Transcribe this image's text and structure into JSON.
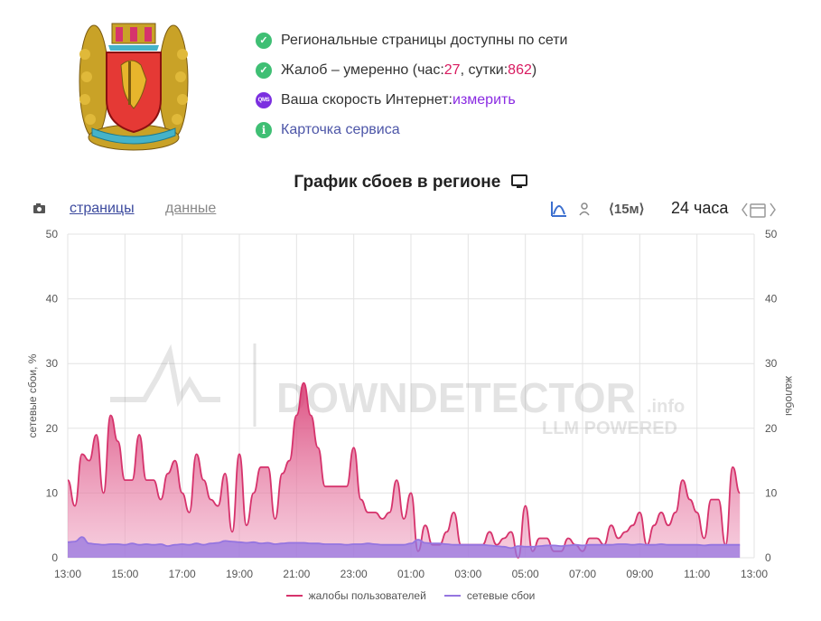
{
  "status": {
    "line1": "Региональные страницы доступны по сети",
    "line2_prefix": "Жалоб – умеренно (час: ",
    "line2_hour": "27",
    "line2_mid": ", сутки: ",
    "line2_day": "862",
    "line2_suffix": ")",
    "line3_label": "Ваша скорость Интернет: ",
    "line3_link": "измерить",
    "qms_badge": "QMS",
    "line4": "Карточка сервиса"
  },
  "chart_title": "График сбоев в регионе",
  "toolbar": {
    "tab_pages": "страницы",
    "tab_data": "данные",
    "interval": "⟨15м⟩",
    "period": "24 часа"
  },
  "watermark": {
    "main": "DOWNDETECTOR",
    "suffix": ".info",
    "sub": "LLM POWERED"
  },
  "colors": {
    "complaints": "#d6336c",
    "outages": "#9575e0",
    "ok": "#3fbf74",
    "accent": "#d81b60"
  },
  "chart_data": {
    "type": "area",
    "ylabel_left": "сетевые сбои, %",
    "ylabel_right": "жалобы",
    "ylim": [
      0,
      50
    ],
    "yticks": [
      0,
      10,
      20,
      30,
      40,
      50
    ],
    "x_ticks": [
      "13:00",
      "15:00",
      "17:00",
      "19:00",
      "21:00",
      "23:00",
      "01:00",
      "03:00",
      "05:00",
      "07:00",
      "09:00",
      "11:00",
      "13:00"
    ],
    "x_start": "13:00",
    "x_step_minutes": 15,
    "legend_position": "bottom",
    "grid": true,
    "series": [
      {
        "name": "жалобы пользователей",
        "values": [
          12,
          8,
          16,
          15,
          19,
          10,
          22,
          18,
          12,
          12,
          19,
          12,
          12,
          9,
          13,
          15,
          10,
          7,
          16,
          12,
          9,
          8,
          13,
          4,
          16,
          5,
          10,
          14,
          14,
          6,
          13,
          15,
          22,
          27,
          22,
          17,
          11,
          11,
          11,
          11,
          17,
          9,
          7,
          7,
          6,
          7,
          12,
          6,
          10,
          1,
          5,
          2,
          2,
          4,
          7,
          2,
          2,
          2,
          2,
          4,
          2,
          3,
          4,
          0,
          8,
          1,
          3,
          3,
          1,
          1,
          3,
          2,
          1,
          3,
          3,
          2,
          5,
          3,
          4,
          5,
          7,
          2,
          5,
          7,
          5,
          7,
          12,
          9,
          7,
          3,
          9,
          9,
          2,
          14,
          10
        ]
      },
      {
        "name": "сетевые сбои",
        "values": [
          2.4,
          2.5,
          3.2,
          2.2,
          2.1,
          2.0,
          2.1,
          2.1,
          2.0,
          2.2,
          2.0,
          2.1,
          2.0,
          2.1,
          1.8,
          2.0,
          2.1,
          2.0,
          2.2,
          2.0,
          2.2,
          2.3,
          2.6,
          2.5,
          2.4,
          2.3,
          2.4,
          2.2,
          2.3,
          2.1,
          2.2,
          2.3,
          2.3,
          2.3,
          2.2,
          2.2,
          2.1,
          2.1,
          2.1,
          2.0,
          2.1,
          2.1,
          2.2,
          2.1,
          2.0,
          2.0,
          2.0,
          2.0,
          2.2,
          2.8,
          2.3,
          2.2,
          2.2,
          2.1,
          2.0,
          2.0,
          2.0,
          2.0,
          2.0,
          1.9,
          1.8,
          1.7,
          1.5,
          1.8,
          1.7,
          1.7,
          1.8,
          1.9,
          1.9,
          1.8,
          1.9,
          2.0,
          1.9,
          2.0,
          2.0,
          2.0,
          2.0,
          2.1,
          2.1,
          2.0,
          2.1,
          2.0,
          2.0,
          2.1,
          2.0,
          2.0,
          2.0,
          2.0,
          2.0,
          1.9,
          2.0,
          2.0,
          2.0,
          2.0,
          2.0
        ]
      }
    ]
  }
}
